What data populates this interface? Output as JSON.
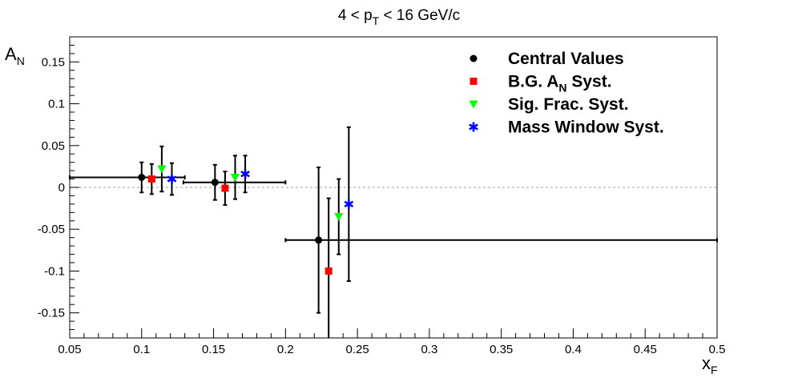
{
  "chart_data": {
    "type": "scatter",
    "title": "4 < p_T < 16 GeV/c",
    "title_parts": {
      "pre": "4 < p",
      "sub": "T",
      "post": " < 16 GeV/c"
    },
    "xlabel": "x_F",
    "xlabel_parts": {
      "main": "x",
      "sub": "F"
    },
    "ylabel": "A_N",
    "ylabel_parts": {
      "main": "A",
      "sub": "N"
    },
    "xlim": [
      0.05,
      0.5
    ],
    "ylim": [
      -0.18,
      0.18
    ],
    "x_ticks": [
      "0.05",
      "0.1",
      "0.15",
      "0.2",
      "0.25",
      "0.3",
      "0.35",
      "0.4",
      "0.45",
      "0.5"
    ],
    "y_ticks": [
      "-0.15",
      "-0.1",
      "-0.05",
      "0",
      "0.05",
      "0.1",
      "0.15"
    ],
    "zero_line": true,
    "grid": false,
    "legend_position": "top-right",
    "series": [
      {
        "name": "Central Values",
        "legend_parts": {
          "main": "Central Values"
        },
        "marker": "circle",
        "color": "#000000",
        "points": [
          {
            "x": 0.1,
            "y": 0.012,
            "xerr_low": 0.05,
            "xerr_high": 0.03,
            "yerr": 0.018
          },
          {
            "x": 0.151,
            "y": 0.006,
            "xerr_low": 0.022,
            "xerr_high": 0.049,
            "yerr": 0.021
          },
          {
            "x": 0.223,
            "y": -0.063,
            "xerr_low": 0.023,
            "xerr_high": 0.277,
            "yerr": 0.087
          }
        ]
      },
      {
        "name": "B.G. A_N Syst.",
        "legend_parts": {
          "pre": "B.G. A",
          "sub": "N",
          "post": " Syst."
        },
        "marker": "square",
        "color": "#ff0000",
        "points": [
          {
            "x": 0.107,
            "y": 0.01,
            "yerr": 0.018
          },
          {
            "x": 0.158,
            "y": -0.001,
            "yerr": 0.02
          },
          {
            "x": 0.23,
            "y": -0.1,
            "yerr": 0.087
          }
        ]
      },
      {
        "name": "Sig. Frac. Syst.",
        "legend_parts": {
          "main": "Sig. Frac. Syst."
        },
        "marker": "triangle-down",
        "color": "#00ff00",
        "points": [
          {
            "x": 0.114,
            "y": 0.022,
            "yerr": 0.027
          },
          {
            "x": 0.165,
            "y": 0.012,
            "yerr": 0.026
          },
          {
            "x": 0.237,
            "y": -0.035,
            "yerr": 0.045
          }
        ]
      },
      {
        "name": "Mass Window Syst.",
        "legend_parts": {
          "main": "Mass Window Syst."
        },
        "marker": "star",
        "color": "#0000ff",
        "points": [
          {
            "x": 0.121,
            "y": 0.01,
            "yerr": 0.019
          },
          {
            "x": 0.172,
            "y": 0.016,
            "yerr": 0.022
          },
          {
            "x": 0.244,
            "y": -0.02,
            "yerr": 0.092
          }
        ]
      }
    ]
  }
}
